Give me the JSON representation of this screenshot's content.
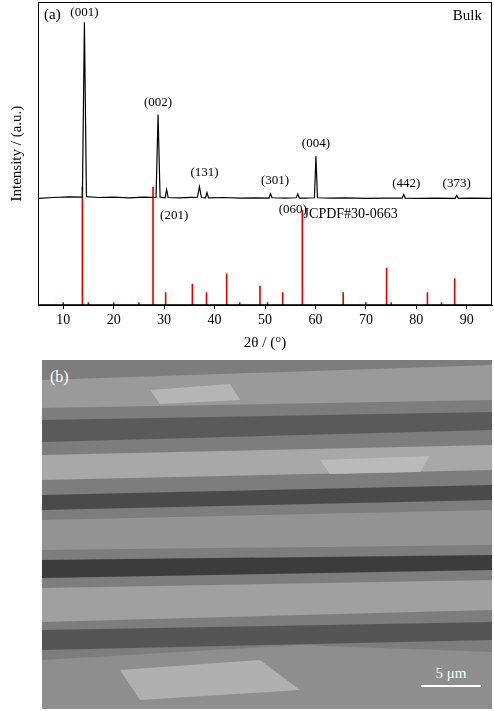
{
  "chart_data": {
    "type": "line",
    "panel_label": "(a)",
    "x_label": "2θ / (°)",
    "y_label": "Intensity / (a.u.)",
    "xlim": [
      5,
      95
    ],
    "xticks": [
      10,
      20,
      30,
      40,
      50,
      60,
      70,
      80,
      90
    ],
    "ylim": [
      0,
      105
    ],
    "tick_labels": "x",
    "grid": false,
    "series": [
      {
        "name": "Bulk",
        "type": "line",
        "color": "#000000",
        "x": [
          5,
          8,
          11,
          13.8,
          14.2,
          14.6,
          17,
          20,
          23,
          26,
          28.4,
          28.8,
          29.2,
          30.2,
          30.5,
          30.8,
          33,
          36.6,
          37,
          37.4,
          38.2,
          38.5,
          38.8,
          42,
          45,
          48,
          50.8,
          51.1,
          51.4,
          54,
          56.2,
          56.5,
          56.8,
          58,
          59.8,
          60.1,
          60.4,
          63,
          66,
          70,
          74,
          77.2,
          77.5,
          77.8,
          81,
          84,
          87.7,
          88,
          88.3,
          91,
          95
        ],
        "values": [
          37,
          37.3,
          37.5,
          37.4,
          98,
          37.6,
          37.3,
          37.4,
          37.2,
          37.4,
          37.3,
          66,
          37.4,
          37.2,
          40,
          37.3,
          37.2,
          37.4,
          41,
          37.3,
          37.2,
          39,
          37.2,
          37.3,
          37.1,
          37.2,
          37.1,
          38.6,
          37.2,
          37.1,
          37.2,
          38.5,
          37.1,
          37.1,
          37.2,
          51.6,
          37.2,
          37.1,
          37.2,
          37.0,
          37.1,
          37.1,
          38.3,
          37.1,
          37.0,
          37.1,
          37.0,
          38.0,
          37.0,
          37.1,
          37.0
        ]
      },
      {
        "name": "JCPDF#30-0663",
        "type": "bar",
        "color": "#e00000",
        "x": [
          10,
          13.8,
          15,
          20,
          25,
          27.8,
          30.3,
          35.6,
          38.4,
          42.4,
          45,
          49,
          50.5,
          53.5,
          57.4,
          65.5,
          70,
          74.1,
          75,
          82.2,
          85,
          87.6
        ],
        "values": [
          1,
          41,
          1,
          1,
          1,
          41,
          4.5,
          7.4,
          4.5,
          11,
          1,
          6.7,
          1,
          4.5,
          33,
          4.5,
          1,
          13,
          1,
          4.5,
          1,
          9.3
        ]
      }
    ],
    "annotations": [
      {
        "text": "(001)",
        "x": 14.2,
        "y": 101.5
      },
      {
        "text": "(002)",
        "x": 28.8,
        "y": 70
      },
      {
        "text": "(201)",
        "x": 32,
        "y": 31
      },
      {
        "text": "(131)",
        "x": 38,
        "y": 46
      },
      {
        "text": "(301)",
        "x": 52,
        "y": 43
      },
      {
        "text": "(060)",
        "x": 55.5,
        "y": 33
      },
      {
        "text": "(004)",
        "x": 60.1,
        "y": 56
      },
      {
        "text": "(442)",
        "x": 78,
        "y": 42
      },
      {
        "text": "(373)",
        "x": 88,
        "y": 42
      }
    ]
  },
  "image": {
    "panel_label": "(b)",
    "scale_bar": "5 μm"
  }
}
